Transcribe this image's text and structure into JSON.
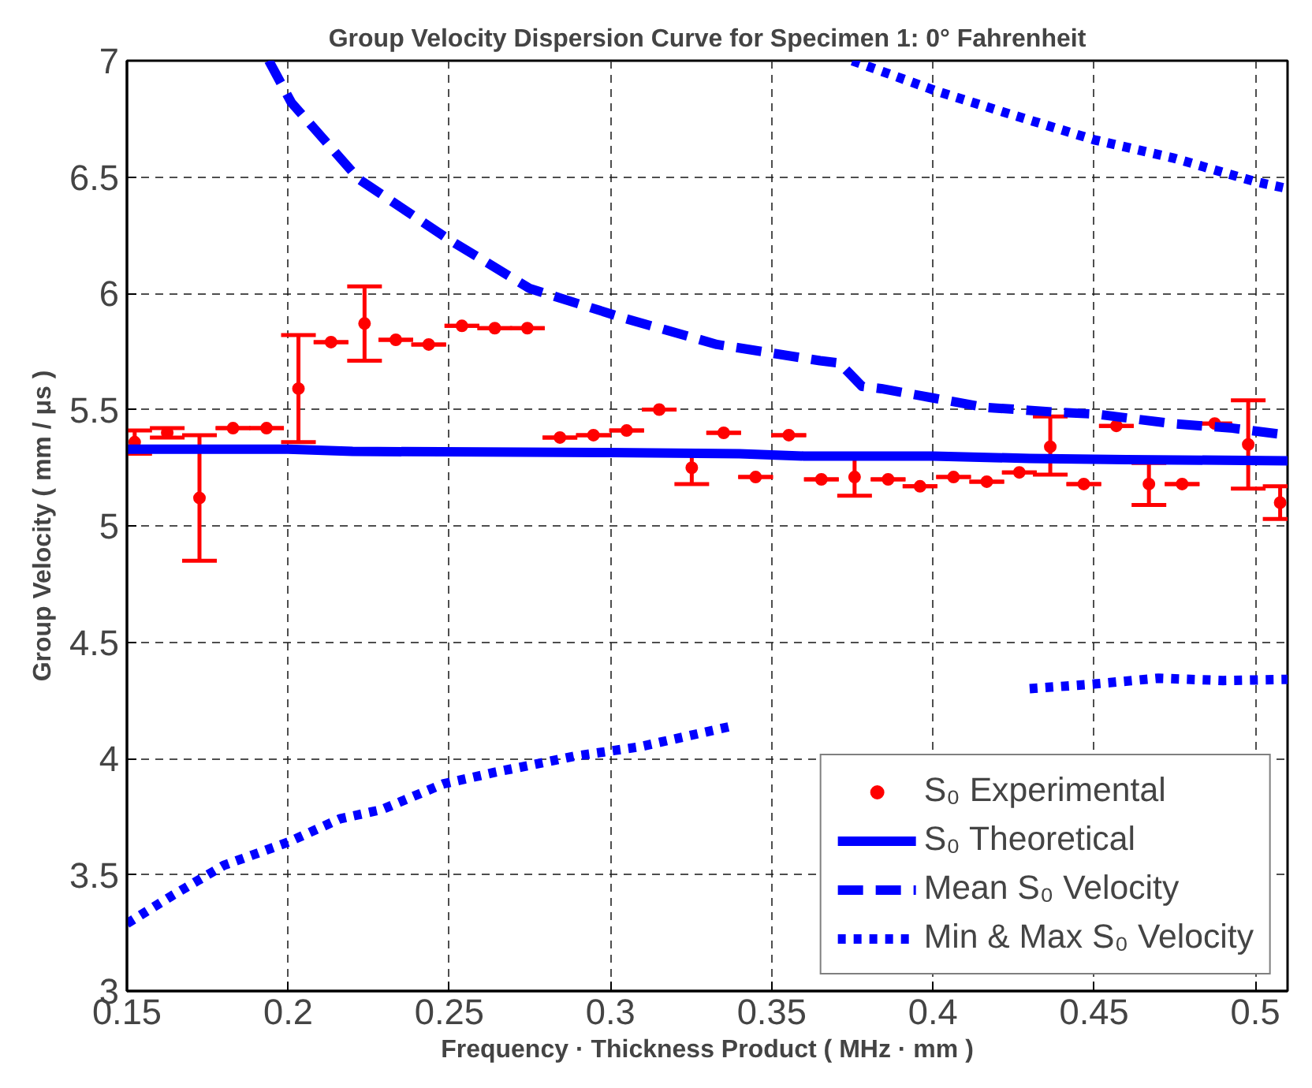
{
  "chart_data": {
    "type": "line",
    "title": "Group Velocity Dispersion Curve for Specimen 1: 0° Fahrenheit",
    "xlabel": "Frequency · Thickness Product ( MHz · mm )",
    "ylabel": "Group Velocity ( mm / μs )",
    "xlim": [
      0.15,
      0.51
    ],
    "xticks": [
      0.15,
      0.2,
      0.25,
      0.3,
      0.35,
      0.4,
      0.45,
      0.5
    ],
    "ylim": [
      3,
      7
    ],
    "yticks": [
      3,
      3.5,
      4,
      4.5,
      5,
      5.5,
      6,
      6.5,
      7
    ],
    "grid": true,
    "legend": "bottom right",
    "series": [
      {
        "name": "S₀ Experimental",
        "type": "scatter",
        "marker": "circle",
        "color": "#ff0000",
        "x": [
          0.1524,
          0.1625,
          0.1725,
          0.1829,
          0.1933,
          0.2032,
          0.2133,
          0.2237,
          0.2334,
          0.2436,
          0.2539,
          0.2641,
          0.2742,
          0.2843,
          0.2947,
          0.305,
          0.3151,
          0.3252,
          0.3351,
          0.345,
          0.3553,
          0.3654,
          0.3757,
          0.3861,
          0.396,
          0.4064,
          0.4167,
          0.4268,
          0.4364,
          0.4468,
          0.4569,
          0.467,
          0.4773,
          0.4874,
          0.4978,
          0.5077
        ],
        "values": [
          5.36,
          5.4,
          5.12,
          5.42,
          5.42,
          5.59,
          5.79,
          5.87,
          5.8,
          5.78,
          5.86,
          5.85,
          5.85,
          5.38,
          5.39,
          5.41,
          5.5,
          5.25,
          5.4,
          5.21,
          5.39,
          5.2,
          5.21,
          5.2,
          5.17,
          5.21,
          5.19,
          5.23,
          5.34,
          5.18,
          5.43,
          5.18,
          5.18,
          5.44,
          5.35,
          5.1
        ],
        "errors": [
          0.05,
          0.02,
          0.27,
          0,
          0,
          0.23,
          0,
          0.16,
          0,
          0,
          0,
          0,
          0,
          0,
          0,
          0,
          0,
          0.07,
          0,
          0,
          0,
          0,
          0.08,
          0,
          0,
          0,
          0,
          0,
          [
            5.22,
            5.47
          ],
          0,
          0,
          0.09,
          0,
          0,
          0.19,
          0.07
        ]
      },
      {
        "name": "S₀ Theoretical",
        "line_style": "solid",
        "color": "#0000ff",
        "x": [
          0.15,
          0.2,
          0.22,
          0.3,
          0.34,
          0.36,
          0.4,
          0.43,
          0.46,
          0.51
        ],
        "values": [
          5.33,
          5.33,
          5.32,
          5.315,
          5.31,
          5.3,
          5.3,
          5.29,
          5.285,
          5.28
        ]
      },
      {
        "name": "Mean S₀ Velocity",
        "line_style": "dashed",
        "color": "#0000ff",
        "x": [
          0.194,
          0.201,
          0.222,
          0.25,
          0.275,
          0.305,
          0.333,
          0.365,
          0.371,
          0.378,
          0.384,
          0.4,
          0.416,
          0.437,
          0.451,
          0.474,
          0.493,
          0.51
        ],
        "values": [
          7.0,
          6.82,
          6.49,
          6.23,
          6.02,
          5.89,
          5.78,
          5.71,
          5.7,
          5.6,
          5.59,
          5.55,
          5.51,
          5.49,
          5.48,
          5.44,
          5.42,
          5.39
        ]
      },
      {
        "name": "Min & Max S₀ Velocity",
        "line_style": "dotted",
        "color": "#0000ff",
        "x": [
          0.15,
          0.164,
          0.18,
          0.2,
          0.216,
          0.229,
          0.248,
          0.264,
          0.289,
          0.309,
          0.338,
          0.34,
          0.42,
          0.43,
          0.45,
          0.47,
          0.49,
          0.51
        ],
        "values": [
          3.29,
          3.41,
          3.54,
          3.64,
          3.74,
          3.78,
          3.89,
          3.94,
          4.01,
          4.05,
          4.14,
          null,
          null,
          4.3,
          4.32,
          4.345,
          4.335,
          4.34
        ]
      },
      {
        "line_style": "dotted",
        "color": "#0000ff",
        "x": [
          0.375,
          0.401,
          0.424,
          0.45,
          0.475,
          0.5,
          0.51
        ],
        "values": [
          7.0,
          6.87,
          6.77,
          6.66,
          6.58,
          6.48,
          6.45
        ]
      }
    ]
  }
}
